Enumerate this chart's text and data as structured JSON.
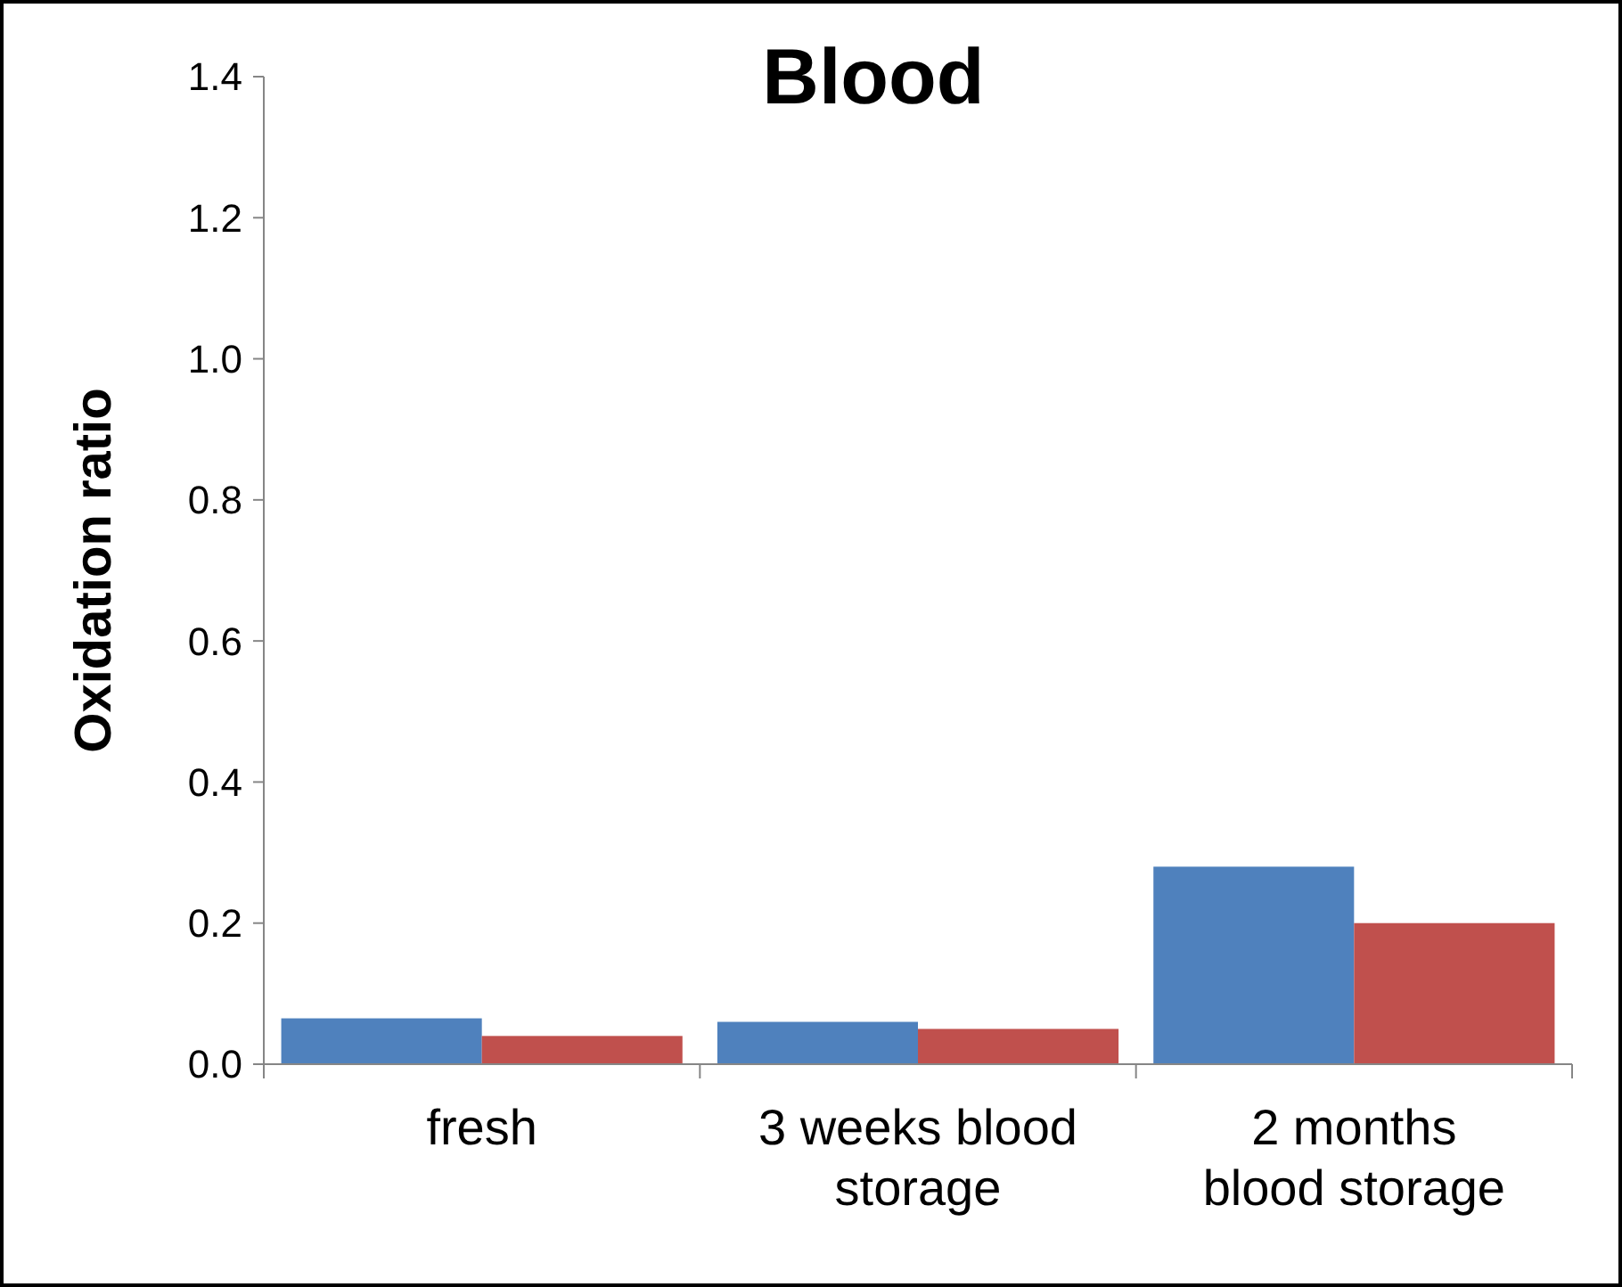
{
  "chart_data": {
    "type": "bar",
    "title": "Blood",
    "ylabel": "Oxidation ratio",
    "categories": [
      "fresh",
      "3 weeks blood storage",
      "2 months blood storage"
    ],
    "series": [
      {
        "color": "#4f81bd",
        "values": [
          0.065,
          0.06,
          0.28
        ]
      },
      {
        "color": "#c0504d",
        "values": [
          0.04,
          0.05,
          0.2
        ]
      }
    ],
    "ylim": [
      0,
      1.4
    ],
    "yticks": [
      {
        "value": 0,
        "label": "0.0"
      },
      {
        "value": 0.2,
        "label": "0.2"
      },
      {
        "value": 0.4,
        "label": "0.4"
      },
      {
        "value": 0.6,
        "label": "0.6"
      },
      {
        "value": 0.8,
        "label": "0.8"
      },
      {
        "value": 1,
        "label": "1.0"
      },
      {
        "value": 1.2,
        "label": "1.2"
      },
      {
        "value": 1.4,
        "label": "1.4"
      }
    ],
    "grid": false
  }
}
